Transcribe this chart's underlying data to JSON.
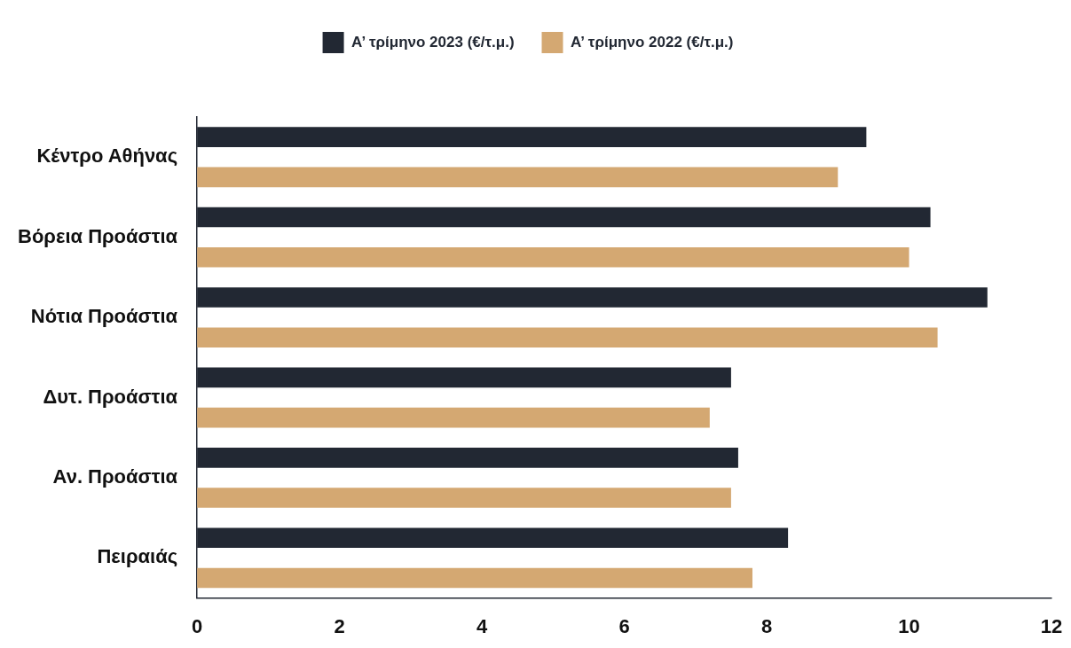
{
  "chart_data": {
    "type": "bar",
    "orientation": "horizontal",
    "categories": [
      "Κέντρο Αθήνας",
      "Βόρεια Προάστια",
      "Νότια Προάστια",
      "Δυτ. Προάστια",
      "Αν. Προάστια",
      "Πειραιάς"
    ],
    "series": [
      {
        "name": "Α’ τρίμηνο 2023 (€/τ.μ.)",
        "color": "#222833",
        "values": [
          9.4,
          10.3,
          11.1,
          7.5,
          7.6,
          8.3
        ]
      },
      {
        "name": "Α’ τρίμηνο 2022 (€/τ.μ.)",
        "color": "#d4a872",
        "values": [
          9.0,
          10.0,
          10.4,
          7.2,
          7.5,
          7.8
        ]
      }
    ],
    "xlim": [
      0,
      12
    ],
    "xticks": [
      0,
      2,
      4,
      6,
      8,
      10,
      12
    ],
    "grid": false,
    "legend": "top"
  }
}
